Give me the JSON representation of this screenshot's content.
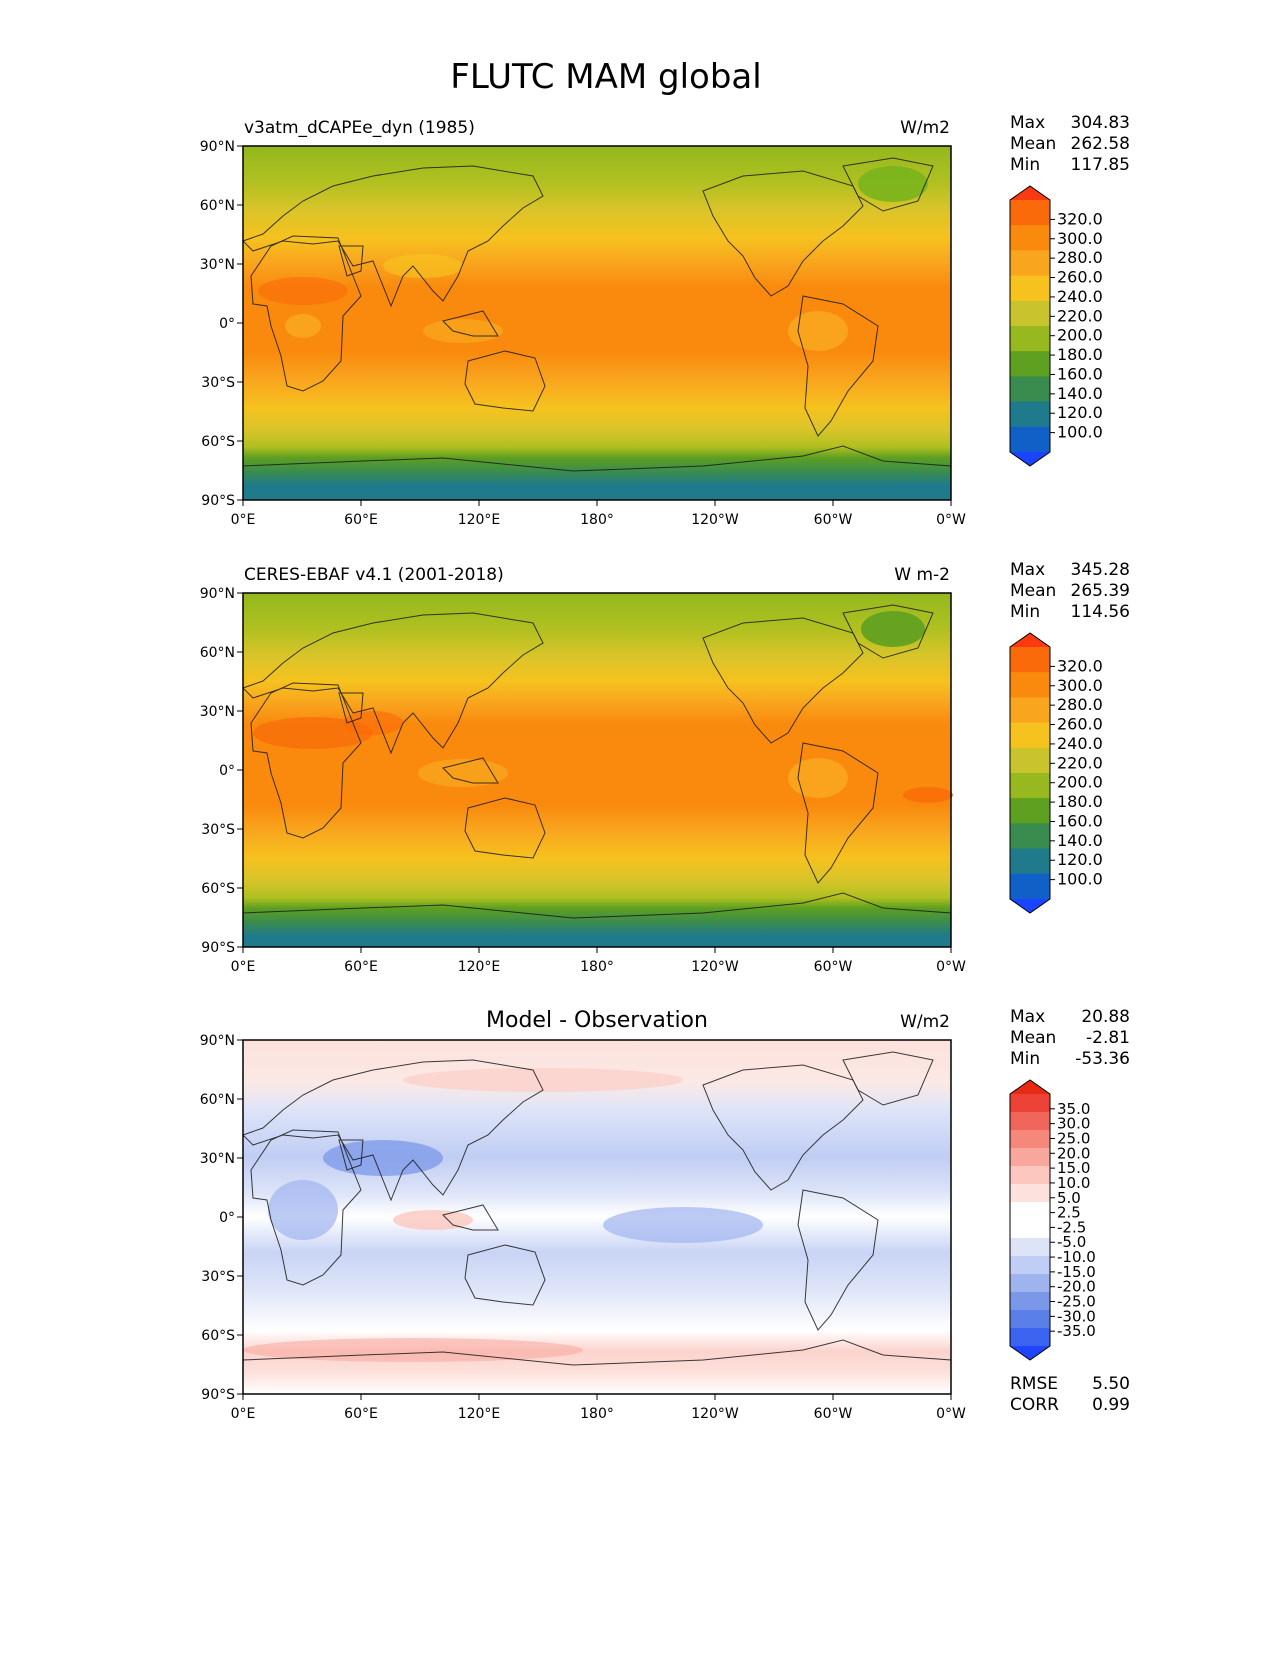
{
  "title": "FLUTC MAM global",
  "lat_labels": [
    "90°N",
    "60°N",
    "30°N",
    "0°",
    "30°S",
    "60°S",
    "90°S"
  ],
  "lon_labels": [
    "0°E",
    "60°E",
    "120°E",
    "180°",
    "120°W",
    "60°W",
    "0°W"
  ],
  "colors": {
    "abs_scale": [
      "#1a44ff",
      "#1060c8",
      "#1f7a8c",
      "#3a8c4e",
      "#5ea020",
      "#97b81e",
      "#c9c42c",
      "#f6c21e",
      "#f9a51e",
      "#f98a0e",
      "#fa6a0a",
      "#fb3a12"
    ],
    "diff_scale": [
      "#1f45ff",
      "#3b64f0",
      "#5a7fe6",
      "#7b97e8",
      "#9fb3ef",
      "#c0cdf4",
      "#dde4f8",
      "#ffffff",
      "#ffffff",
      "#fde1dc",
      "#fbc7bf",
      "#f8a79c",
      "#f5887b",
      "#f1665a",
      "#ec4336",
      "#e82a12"
    ]
  },
  "panels": [
    {
      "id": "model",
      "left_title": "v3atm_dCAPEe_dyn (1985)",
      "center_title": "",
      "units": "W/m2",
      "stats": [
        {
          "label": "Max",
          "value": "304.83"
        },
        {
          "label": "Mean",
          "value": "262.58"
        },
        {
          "label": "Min",
          "value": "117.85"
        }
      ],
      "colorbar_ticks": [
        "320.0",
        "300.0",
        "280.0",
        "260.0",
        "240.0",
        "220.0",
        "200.0",
        "180.0",
        "160.0",
        "140.0",
        "120.0",
        "100.0"
      ]
    },
    {
      "id": "obs",
      "left_title": "CERES-EBAF v4.1 (2001-2018)",
      "center_title": "",
      "units": "W m-2",
      "stats": [
        {
          "label": "Max",
          "value": "345.28"
        },
        {
          "label": "Mean",
          "value": "265.39"
        },
        {
          "label": "Min",
          "value": "114.56"
        }
      ],
      "colorbar_ticks": [
        "320.0",
        "300.0",
        "280.0",
        "260.0",
        "240.0",
        "220.0",
        "200.0",
        "180.0",
        "160.0",
        "140.0",
        "120.0",
        "100.0"
      ]
    },
    {
      "id": "diff",
      "left_title": "",
      "center_title": "Model - Observation",
      "units": "W/m2",
      "stats": [
        {
          "label": "Max",
          "value": "20.88"
        },
        {
          "label": "Mean",
          "value": "-2.81"
        },
        {
          "label": "Min",
          "value": "-53.36"
        }
      ],
      "colorbar_ticks": [
        "35.0",
        "30.0",
        "25.0",
        "20.0",
        "15.0",
        "10.0",
        "5.0",
        "2.5",
        "-2.5",
        "-5.0",
        "-10.0",
        "-15.0",
        "-20.0",
        "-25.0",
        "-30.0",
        "-35.0"
      ],
      "metrics": [
        {
          "label": "RMSE",
          "value": "5.50"
        },
        {
          "label": "CORR",
          "value": "0.99"
        }
      ]
    }
  ]
}
